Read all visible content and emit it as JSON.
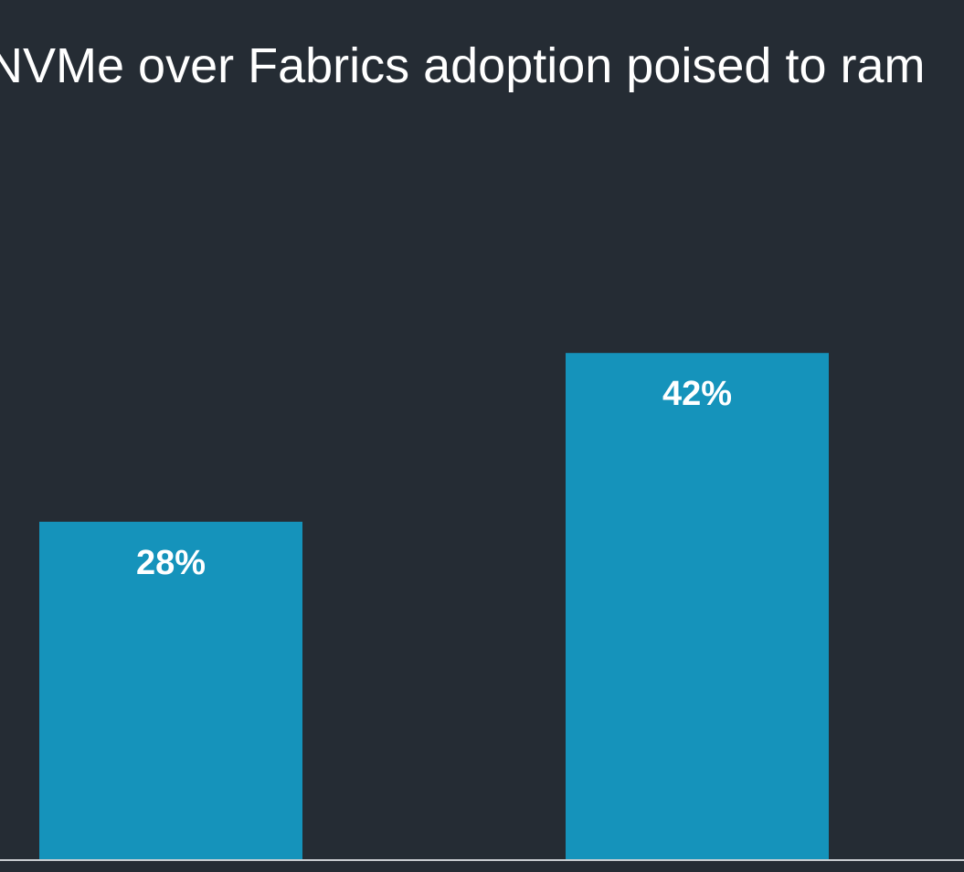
{
  "chart_data": {
    "type": "bar",
    "title": "NVMe over Fabrics adoption poised to ram",
    "categories": [
      null,
      null
    ],
    "values": [
      28,
      42
    ],
    "value_labels": [
      "28%",
      "42%"
    ],
    "color": "#1593bb",
    "ylim": [
      0,
      70
    ]
  }
}
